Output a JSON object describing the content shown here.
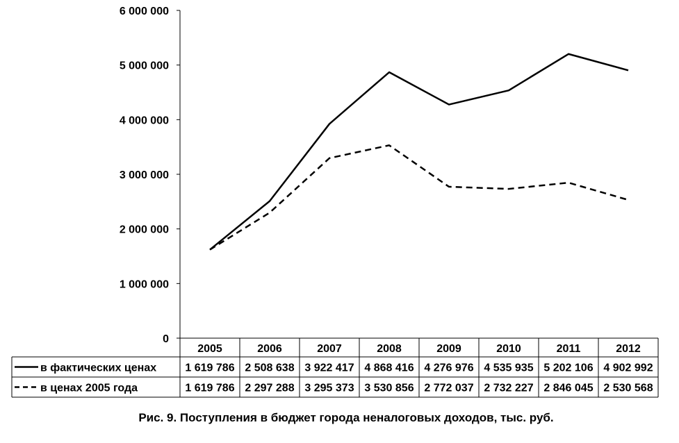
{
  "chart_data": {
    "type": "line",
    "title": "",
    "xlabel": "",
    "ylabel": "",
    "categories": [
      "2005",
      "2006",
      "2007",
      "2008",
      "2009",
      "2010",
      "2011",
      "2012"
    ],
    "ylim": [
      0,
      6000000
    ],
    "yticks": [
      0,
      1000000,
      2000000,
      3000000,
      4000000,
      5000000,
      6000000
    ],
    "ytick_labels": [
      "0",
      "1 000 000",
      "2 000 000",
      "3 000 000",
      "4 000 000",
      "5 000 000",
      "6 000 000"
    ],
    "grid": false,
    "legend": "data-table-below",
    "series": [
      {
        "name": "в фактических ценах",
        "style": "solid",
        "color": "#000000",
        "values": [
          1619786,
          2508638,
          3922417,
          4868416,
          4276976,
          4535935,
          5202106,
          4902992
        ],
        "labels": [
          "1 619 786",
          "2 508 638",
          "3 922 417",
          "4 868 416",
          "4 276 976",
          "4 535 935",
          "5 202 106",
          "4 902 992"
        ]
      },
      {
        "name": "в ценах 2005 года",
        "style": "dashed",
        "color": "#000000",
        "values": [
          1619786,
          2297288,
          3295373,
          3530856,
          2772037,
          2732227,
          2846045,
          2530568
        ],
        "labels": [
          "1 619 786",
          "2 297 288",
          "3 295 373",
          "3 530 856",
          "2 772 037",
          "2 732 227",
          "2 846 045",
          "2 530 568"
        ]
      }
    ]
  },
  "caption": "Рис. 9. Поступления в бюджет города неналоговых доходов, тыс. руб."
}
